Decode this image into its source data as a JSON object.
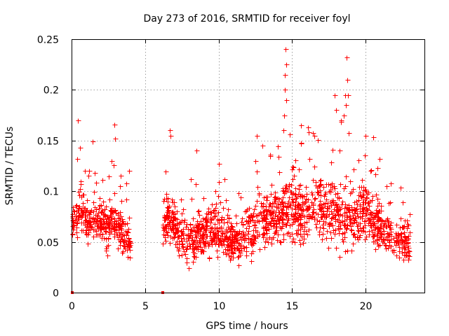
{
  "chart_data": {
    "type": "scatter",
    "title": "Day 273 of 2016, SRMTID for receiver foyl",
    "xlabel": "GPS time / hours",
    "ylabel": "SRMTID / TECUs",
    "xlim": [
      0,
      24
    ],
    "ylim": [
      0,
      0.25
    ],
    "xticks": [
      0,
      5,
      10,
      15,
      20
    ],
    "xtick_labels": [
      "0",
      "5",
      "10",
      "15",
      "20"
    ],
    "yticks": [
      0,
      0.05,
      0.1,
      0.15,
      0.2,
      0.25
    ],
    "ytick_labels": [
      "0",
      "0.05",
      "0.1",
      "0.15",
      "0.2",
      "0.25"
    ],
    "grid": true,
    "marker": "+",
    "color": "#ff0000",
    "zero_markers_x": [
      0.05,
      6.2
    ],
    "series": [
      {
        "name": "SRMTID",
        "segments": [
          {
            "x_range": [
              0.0,
              4.0
            ],
            "x": [
              0.0,
              0.2,
              0.4,
              0.6,
              0.8,
              1.0,
              1.2,
              1.4,
              1.6,
              1.8,
              2.0,
              2.2,
              2.4,
              2.6,
              2.8,
              3.0,
              3.2,
              3.4,
              3.6,
              3.8,
              4.0
            ],
            "median": [
              0.068,
              0.072,
              0.08,
              0.085,
              0.08,
              0.075,
              0.072,
              0.07,
              0.068,
              0.065,
              0.07,
              0.068,
              0.07,
              0.072,
              0.075,
              0.07,
              0.065,
              0.06,
              0.055,
              0.05,
              0.045
            ],
            "spread": [
              0.015,
              0.02,
              0.025,
              0.025,
              0.022,
              0.02,
              0.02,
              0.02,
              0.02,
              0.018,
              0.02,
              0.02,
              0.022,
              0.022,
              0.022,
              0.02,
              0.02,
              0.018,
              0.018,
              0.016,
              0.015
            ],
            "peaks": [
              [
                0.45,
                0.17
              ],
              [
                0.55,
                0.143
              ],
              [
                1.45,
                0.149
              ],
              [
                2.9,
                0.166
              ],
              [
                2.95,
                0.152
              ],
              [
                2.7,
                0.13
              ],
              [
                3.9,
                0.12
              ],
              [
                0.9,
                0.12
              ],
              [
                1.2,
                0.12
              ]
            ]
          },
          {
            "x_range": [
              6.2,
              23.0
            ],
            "x": [
              6.2,
              6.5,
              7.0,
              7.5,
              8.0,
              8.5,
              9.0,
              9.5,
              10.0,
              10.5,
              11.0,
              11.5,
              12.0,
              12.5,
              13.0,
              13.5,
              14.0,
              14.5,
              15.0,
              15.5,
              16.0,
              16.5,
              17.0,
              17.5,
              18.0,
              18.5,
              19.0,
              19.5,
              20.0,
              20.5,
              21.0,
              21.5,
              22.0,
              22.5,
              23.0
            ],
            "median": [
              0.06,
              0.075,
              0.065,
              0.055,
              0.05,
              0.055,
              0.06,
              0.065,
              0.06,
              0.055,
              0.05,
              0.052,
              0.06,
              0.07,
              0.072,
              0.075,
              0.078,
              0.08,
              0.085,
              0.075,
              0.08,
              0.085,
              0.085,
              0.08,
              0.075,
              0.07,
              0.075,
              0.08,
              0.078,
              0.07,
              0.065,
              0.06,
              0.055,
              0.05,
              0.045
            ],
            "spread": [
              0.012,
              0.02,
              0.022,
              0.022,
              0.02,
              0.02,
              0.022,
              0.022,
              0.02,
              0.02,
              0.02,
              0.02,
              0.022,
              0.024,
              0.025,
              0.025,
              0.028,
              0.03,
              0.03,
              0.028,
              0.028,
              0.03,
              0.03,
              0.028,
              0.028,
              0.028,
              0.028,
              0.028,
              0.026,
              0.025,
              0.024,
              0.022,
              0.02,
              0.02,
              0.018
            ],
            "peaks": [
              [
                6.7,
                0.16
              ],
              [
                6.75,
                0.155
              ],
              [
                12.6,
                0.155
              ],
              [
                14.55,
                0.24
              ],
              [
                14.6,
                0.225
              ],
              [
                14.5,
                0.215
              ],
              [
                14.5,
                0.2
              ],
              [
                14.6,
                0.19
              ],
              [
                14.45,
                0.175
              ],
              [
                14.4,
                0.16
              ],
              [
                15.6,
                0.165
              ],
              [
                16.1,
                0.163
              ],
              [
                17.9,
                0.195
              ],
              [
                18.0,
                0.18
              ],
              [
                18.7,
                0.232
              ],
              [
                18.75,
                0.21
              ],
              [
                18.8,
                0.195
              ],
              [
                18.6,
                0.195
              ],
              [
                18.65,
                0.185
              ],
              [
                18.5,
                0.175
              ],
              [
                18.3,
                0.17
              ],
              [
                20.0,
                0.155
              ],
              [
                20.5,
                0.153
              ],
              [
                8.5,
                0.14
              ],
              [
                12.5,
                0.13
              ],
              [
                13.5,
                0.135
              ]
            ]
          }
        ]
      }
    ]
  }
}
